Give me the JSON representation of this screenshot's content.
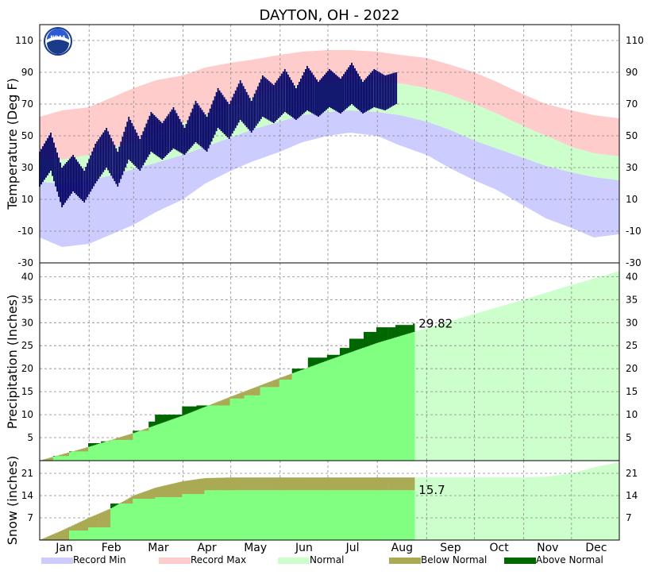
{
  "title": "DAYTON, OH - 2022",
  "months": [
    "Jan",
    "Feb",
    "Mar",
    "Apr",
    "May",
    "Jun",
    "Jul",
    "Aug",
    "Sep",
    "Oct",
    "Nov",
    "Dec"
  ],
  "legend": [
    {
      "label": "Record Min",
      "color": "#ccccff"
    },
    {
      "label": "Record Max",
      "color": "#ffcccc"
    },
    {
      "label": "Normal",
      "color": "#ccffcc"
    },
    {
      "label": "Below Normal",
      "color": "#aaaa55"
    },
    {
      "label": "Above Normal",
      "color": "#006600"
    }
  ],
  "logo_text": "NOAA",
  "chart_data": [
    {
      "type": "area",
      "panel": "temperature",
      "ylabel": "Temperature (Deg F)",
      "ylim": [
        -30,
        120
      ],
      "yticks": [
        110,
        90,
        70,
        50,
        30,
        10,
        -10,
        -30
      ],
      "x_unit": "day_of_year",
      "grid": true,
      "series": [
        {
          "name": "Record Max",
          "color": "#ffcccc",
          "x": [
            1,
            15,
            32,
            46,
            60,
            74,
            91,
            105,
            121,
            135,
            152,
            166,
            182,
            196,
            213,
            227,
            244,
            258,
            274,
            288,
            305,
            319,
            335,
            349,
            365
          ],
          "values": [
            62,
            66,
            68,
            74,
            80,
            85,
            88,
            93,
            96,
            98,
            101,
            103,
            104,
            104,
            103,
            101,
            99,
            95,
            90,
            84,
            76,
            70,
            66,
            63,
            61
          ]
        },
        {
          "name": "Normal High",
          "color": "#ccffcc",
          "x": [
            1,
            15,
            32,
            46,
            60,
            74,
            91,
            105,
            121,
            135,
            152,
            166,
            182,
            196,
            213,
            227,
            244,
            258,
            274,
            288,
            305,
            319,
            335,
            349,
            365
          ],
          "values": [
            36,
            35,
            38,
            42,
            46,
            51,
            58,
            63,
            69,
            74,
            79,
            82,
            84,
            85,
            84,
            83,
            80,
            76,
            70,
            64,
            56,
            50,
            43,
            39,
            37
          ]
        },
        {
          "name": "Normal Low",
          "color": "#ccffcc",
          "x": [
            1,
            15,
            32,
            46,
            60,
            74,
            91,
            105,
            121,
            135,
            152,
            166,
            182,
            196,
            213,
            227,
            244,
            258,
            274,
            288,
            305,
            319,
            335,
            349,
            365
          ],
          "values": [
            21,
            20,
            22,
            25,
            29,
            33,
            38,
            43,
            49,
            54,
            59,
            63,
            65,
            66,
            65,
            63,
            59,
            54,
            47,
            42,
            36,
            31,
            27,
            24,
            22
          ]
        },
        {
          "name": "Record Min",
          "color": "#ccccff",
          "x": [
            1,
            15,
            32,
            46,
            60,
            74,
            91,
            105,
            121,
            135,
            152,
            166,
            182,
            196,
            213,
            227,
            244,
            258,
            274,
            288,
            305,
            319,
            335,
            349,
            365
          ],
          "values": [
            -14,
            -20,
            -18,
            -12,
            -6,
            2,
            10,
            20,
            28,
            34,
            40,
            46,
            50,
            52,
            50,
            44,
            38,
            30,
            22,
            16,
            6,
            -2,
            -8,
            -14,
            -12
          ]
        },
        {
          "name": "Observed High",
          "color": "#000066",
          "x": [
            1,
            8,
            15,
            22,
            29,
            36,
            43,
            50,
            57,
            64,
            71,
            78,
            85,
            92,
            99,
            106,
            113,
            120,
            127,
            134,
            141,
            148,
            155,
            162,
            169,
            176,
            183,
            190,
            197,
            204,
            211,
            218,
            225
          ],
          "values": [
            40,
            52,
            30,
            38,
            28,
            45,
            55,
            40,
            62,
            48,
            65,
            58,
            68,
            55,
            72,
            62,
            80,
            70,
            85,
            72,
            88,
            82,
            92,
            80,
            94,
            84,
            92,
            86,
            96,
            84,
            92,
            88,
            90
          ]
        },
        {
          "name": "Observed Low",
          "color": "#000066",
          "x": [
            1,
            8,
            15,
            22,
            29,
            36,
            43,
            50,
            57,
            64,
            71,
            78,
            85,
            92,
            99,
            106,
            113,
            120,
            127,
            134,
            141,
            148,
            155,
            162,
            169,
            176,
            183,
            190,
            197,
            204,
            211,
            218,
            225
          ],
          "values": [
            18,
            28,
            5,
            15,
            8,
            20,
            30,
            18,
            35,
            28,
            40,
            35,
            42,
            38,
            46,
            40,
            55,
            48,
            60,
            52,
            62,
            58,
            65,
            60,
            66,
            62,
            68,
            64,
            70,
            64,
            68,
            66,
            70
          ]
        }
      ]
    },
    {
      "type": "area",
      "panel": "precipitation",
      "ylabel": "Precipitation (Inches)",
      "ylim": [
        0,
        43
      ],
      "yticks": [
        40,
        35,
        30,
        25,
        20,
        15,
        10,
        5
      ],
      "x_unit": "day_of_year",
      "grid": true,
      "annotation": "29.82",
      "series": [
        {
          "name": "Normal",
          "color": "#ccffcc",
          "x": [
            1,
            32,
            60,
            91,
            121,
            152,
            182,
            213,
            244,
            274,
            305,
            335,
            365
          ],
          "values": [
            0,
            3.0,
            6.0,
            9.8,
            13.9,
            18.0,
            21.8,
            25.6,
            28.8,
            31.9,
            35.0,
            38.2,
            41.2
          ]
        },
        {
          "name": "Observed",
          "color": "#006600",
          "x": [
            1,
            10,
            20,
            32,
            40,
            46,
            60,
            70,
            74,
            91,
            100,
            121,
            130,
            140,
            152,
            160,
            170,
            182,
            190,
            196,
            205,
            213,
            225,
            236
          ],
          "values": [
            0,
            1.0,
            2.0,
            3.8,
            4.2,
            4.5,
            6.5,
            8.5,
            10.0,
            11.8,
            12.0,
            13.5,
            14.2,
            16.0,
            17.6,
            20.0,
            22.4,
            23.0,
            24.5,
            26.5,
            28.0,
            29.0,
            29.5,
            29.82
          ]
        }
      ]
    },
    {
      "type": "area",
      "panel": "snow",
      "ylabel": "Snow (inches)",
      "ylim": [
        0,
        25
      ],
      "yticks": [
        21,
        14,
        7
      ],
      "x_unit": "day_of_year",
      "grid": true,
      "annotation": "15.7",
      "series": [
        {
          "name": "Normal",
          "color": "#ccffcc",
          "x": [
            1,
            15,
            32,
            46,
            60,
            74,
            91,
            105,
            121,
            305,
            320,
            335,
            350,
            365
          ],
          "values": [
            0,
            3.0,
            7.0,
            10.0,
            14.0,
            16.5,
            18.5,
            19.5,
            19.7,
            19.7,
            20.0,
            21.0,
            23.0,
            24.5
          ]
        },
        {
          "name": "Observed",
          "color": "#aaaa55",
          "x": [
            1,
            20,
            32,
            46,
            60,
            74,
            91,
            105,
            236
          ],
          "values": [
            0,
            3.0,
            4.0,
            11.5,
            13.0,
            13.5,
            14.5,
            15.7,
            15.7
          ]
        }
      ]
    }
  ]
}
